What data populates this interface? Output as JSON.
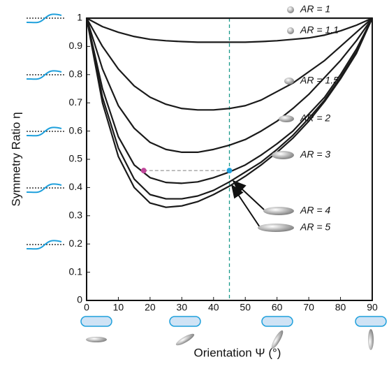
{
  "chart_data": {
    "type": "line",
    "xlabel": "Orientation Ψ (°)",
    "ylabel": "Symmetry Ratio η",
    "x": [
      0,
      5,
      10,
      15,
      20,
      25,
      30,
      35,
      40,
      45,
      50,
      55,
      60,
      65,
      70,
      75,
      80,
      85,
      90
    ],
    "xlim": [
      0,
      90
    ],
    "xticks": [
      0,
      10,
      20,
      30,
      40,
      50,
      60,
      70,
      80,
      90
    ],
    "ylim": [
      0,
      1
    ],
    "yticks": [
      0,
      0.1,
      0.2,
      0.3,
      0.4,
      0.5,
      0.6,
      0.7,
      0.8,
      0.9,
      1
    ],
    "series": [
      {
        "name": "AR = 1",
        "color": "#1a1a1a",
        "values": [
          1,
          1,
          1,
          1,
          1,
          1,
          1,
          1,
          1,
          1,
          1,
          1,
          1,
          1,
          1,
          1,
          1,
          1,
          1
        ]
      },
      {
        "name": "AR = 1.1",
        "color": "#1a1a1a",
        "values": [
          1,
          0.97,
          0.95,
          0.935,
          0.925,
          0.92,
          0.917,
          0.915,
          0.915,
          0.915,
          0.915,
          0.917,
          0.92,
          0.925,
          0.93,
          0.94,
          0.955,
          0.975,
          1
        ]
      },
      {
        "name": "AR = 1.5",
        "color": "#1a1a1a",
        "values": [
          1,
          0.9,
          0.82,
          0.76,
          0.72,
          0.695,
          0.68,
          0.675,
          0.675,
          0.68,
          0.69,
          0.71,
          0.74,
          0.77,
          0.81,
          0.85,
          0.9,
          0.95,
          1
        ]
      },
      {
        "name": "AR = 2",
        "color": "#1a1a1a",
        "values": [
          1,
          0.82,
          0.69,
          0.61,
          0.56,
          0.535,
          0.525,
          0.525,
          0.535,
          0.55,
          0.57,
          0.6,
          0.635,
          0.68,
          0.73,
          0.79,
          0.85,
          0.92,
          1
        ]
      },
      {
        "name": "AR = 3",
        "color": "#1a1a1a",
        "values": [
          1,
          0.75,
          0.58,
          0.48,
          0.435,
          0.418,
          0.415,
          0.42,
          0.435,
          0.455,
          0.48,
          0.515,
          0.555,
          0.6,
          0.66,
          0.72,
          0.8,
          0.89,
          1
        ]
      },
      {
        "name": "AR = 4",
        "color": "#1a1a1a",
        "values": [
          1,
          0.72,
          0.54,
          0.43,
          0.375,
          0.36,
          0.36,
          0.37,
          0.39,
          0.42,
          0.455,
          0.49,
          0.535,
          0.585,
          0.645,
          0.71,
          0.79,
          0.88,
          1
        ]
      },
      {
        "name": "AR = 5",
        "color": "#1a1a1a",
        "values": [
          1,
          0.7,
          0.51,
          0.4,
          0.345,
          0.33,
          0.335,
          0.35,
          0.375,
          0.405,
          0.44,
          0.48,
          0.525,
          0.575,
          0.635,
          0.705,
          0.785,
          0.875,
          1
        ]
      }
    ],
    "points": [
      {
        "x": 18,
        "y": 0.46,
        "color": "#c0479a"
      },
      {
        "x": 45,
        "y": 0.46,
        "color": "#1fa0dc"
      }
    ],
    "vline": {
      "x": 45,
      "color": "#1a9a8a"
    },
    "hline": {
      "y": 0.46,
      "x": [
        18,
        45
      ],
      "color": "#999999"
    }
  }
}
